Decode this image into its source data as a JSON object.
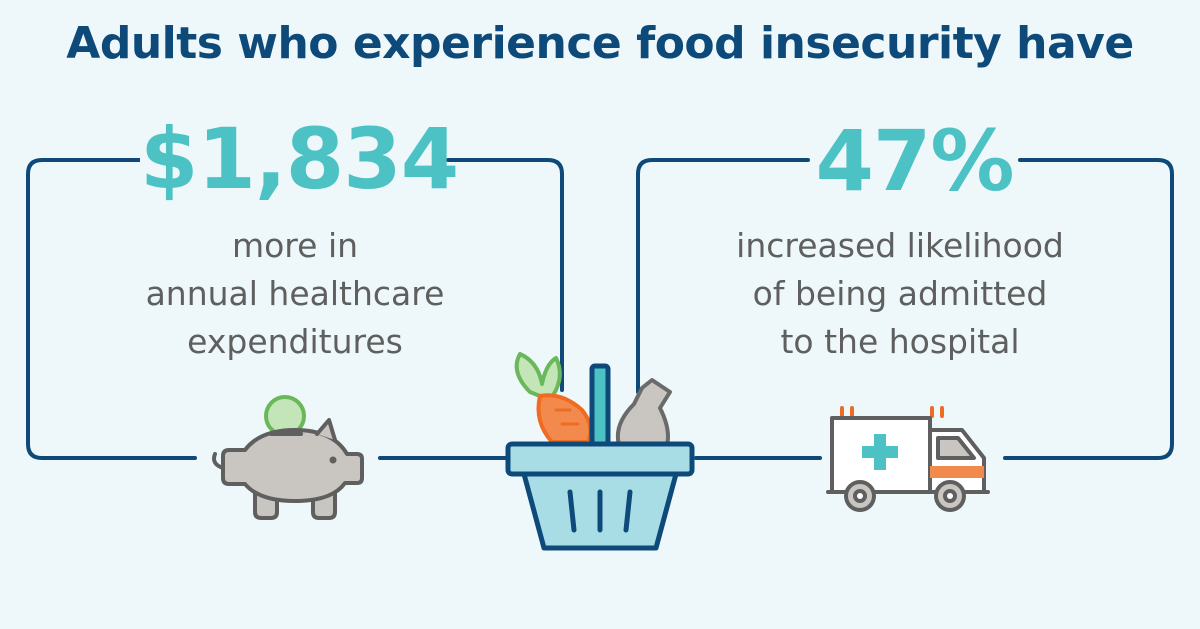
{
  "headline": "Adults who experience food insecurity have",
  "stats": [
    {
      "value": "$1,834",
      "lines": [
        "more in",
        "annual healthcare",
        "expenditures"
      ],
      "icon": "piggy-bank-icon"
    },
    {
      "value": "47%",
      "lines": [
        "increased likelihood",
        "of being admitted",
        "to the hospital"
      ],
      "icon": "ambulance-icon"
    }
  ],
  "center_icon": "grocery-basket-icon",
  "colors": {
    "background": "#eef8fa",
    "headline": "#0d4a7a",
    "frame": "#0d4a7a",
    "accent": "#4cc2c4",
    "body_text": "#5f5f5f"
  }
}
